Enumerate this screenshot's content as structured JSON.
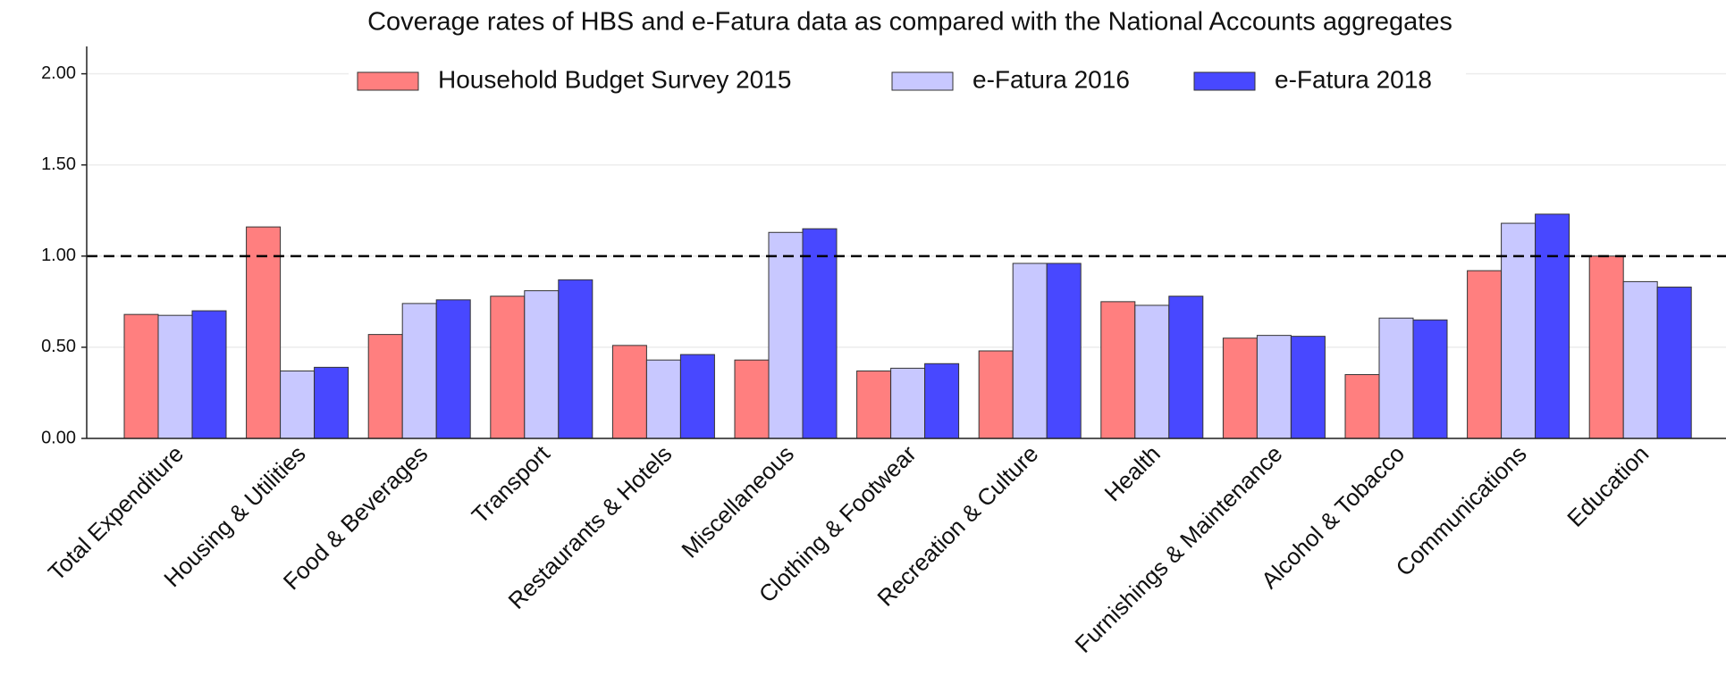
{
  "chart_data": {
    "type": "bar",
    "title": "Coverage rates of HBS and e-Fatura data as compared with the National Accounts aggregates",
    "categories": [
      "Total Expenditure",
      "Housing & Utilities",
      "Food & Beverages",
      "Transport",
      "Restaurants & Hotels",
      "Miscellaneous",
      "Clothing & Footwear",
      "Recreation & Culture",
      "Health",
      "Furnishings & Maintenance",
      "Alcohol & Tobacco",
      "Communications",
      "Education"
    ],
    "series": [
      {
        "name": "Household Budget Survey 2015",
        "color": "#ff7f7f",
        "values": [
          0.68,
          1.16,
          0.57,
          0.78,
          0.51,
          0.43,
          0.37,
          0.48,
          0.75,
          0.55,
          0.35,
          0.92,
          1.0
        ]
      },
      {
        "name": "e-Fatura 2016",
        "color": "#c8c8ff",
        "values": [
          0.675,
          0.37,
          0.74,
          0.81,
          0.43,
          1.13,
          0.385,
          0.96,
          0.73,
          0.565,
          0.66,
          1.18,
          0.86
        ]
      },
      {
        "name": "e-Fatura 2018",
        "color": "#4848ff",
        "values": [
          0.7,
          0.39,
          0.76,
          0.87,
          0.46,
          1.15,
          0.41,
          0.96,
          0.78,
          0.56,
          0.65,
          1.23,
          0.83
        ]
      }
    ],
    "ylim": [
      0,
      2.15
    ],
    "yticks": [
      {
        "value": 0,
        "label": "0.00"
      },
      {
        "value": 0.5,
        "label": "0.50"
      },
      {
        "value": 1,
        "label": "1.00"
      },
      {
        "value": 1.5,
        "label": "1.50"
      },
      {
        "value": 2,
        "label": "2.00"
      }
    ],
    "reference_line": 1,
    "grid": true,
    "legend": "upper center"
  }
}
